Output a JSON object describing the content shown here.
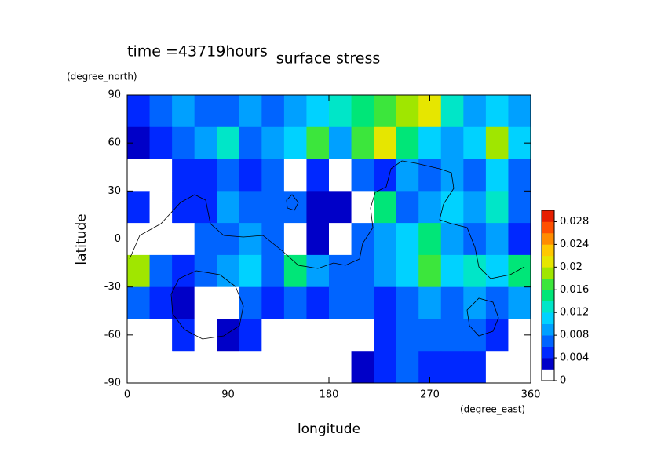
{
  "chart_data": {
    "type": "heatmap",
    "annotation": "time =43719hours",
    "title": "surface stress",
    "y_unit": "(degree_north)",
    "x_unit": "(degree_east)",
    "ylabel": "latitude",
    "xlabel": "longitude",
    "x": [
      10,
      30,
      50,
      70,
      90,
      110,
      130,
      150,
      170,
      190,
      210,
      230,
      250,
      270,
      290,
      310,
      330,
      350
    ],
    "y": [
      80,
      60,
      40,
      20,
      0,
      -20,
      -40,
      -60,
      -80
    ],
    "values": [
      [
        0.004,
        0.006,
        0.008,
        0.006,
        0.006,
        0.008,
        0.006,
        0.008,
        0.01,
        0.012,
        0.014,
        0.016,
        0.018,
        0.02,
        0.012,
        0.008,
        0.01,
        0.008
      ],
      [
        0.002,
        0.004,
        0.006,
        0.008,
        0.012,
        0.006,
        0.008,
        0.01,
        0.016,
        0.008,
        0.016,
        0.02,
        0.014,
        0.01,
        0.008,
        0.01,
        0.018,
        0.01
      ],
      [
        0,
        0,
        0.004,
        0.004,
        0.006,
        0.004,
        0.006,
        0,
        0.004,
        0,
        0.006,
        0.004,
        0.008,
        0.006,
        0.008,
        0.006,
        0.01,
        0.006
      ],
      [
        0.004,
        0,
        0.004,
        0.004,
        0.008,
        0.006,
        0.006,
        0.006,
        0.002,
        0.002,
        0,
        0.014,
        0.006,
        0.008,
        0.01,
        0.008,
        0.012,
        0.006
      ],
      [
        0,
        0,
        0,
        0.006,
        0.006,
        0.008,
        0.006,
        0,
        0.002,
        0,
        0.006,
        0.008,
        0.01,
        0.014,
        0.008,
        0.006,
        0.008,
        0.004
      ],
      [
        0.018,
        0.006,
        0.004,
        0.006,
        0.008,
        0.01,
        0.006,
        0.014,
        0.008,
        0.006,
        0.006,
        0.008,
        0.01,
        0.016,
        0.01,
        0.012,
        0.01,
        0.014
      ],
      [
        0.006,
        0.004,
        0.002,
        0,
        0,
        0.006,
        0.004,
        0.006,
        0.004,
        0.006,
        0.006,
        0.004,
        0.006,
        0.008,
        0.006,
        0.008,
        0.006,
        0.008
      ],
      [
        0,
        0,
        0.004,
        0,
        0.002,
        0.004,
        0,
        0,
        0,
        0,
        0,
        0.004,
        0.006,
        0.006,
        0.006,
        0.006,
        0.004,
        0
      ],
      [
        0,
        0,
        0,
        0,
        0,
        0,
        0,
        0,
        0,
        0,
        0.002,
        0.004,
        0.006,
        0.004,
        0.004,
        0.004,
        0,
        0
      ]
    ],
    "xlim": [
      0,
      360
    ],
    "xticks": [
      0,
      90,
      180,
      270,
      360
    ],
    "ylim": [
      -90,
      90
    ],
    "yticks": [
      90,
      60,
      30,
      0,
      -30,
      -60,
      -90
    ],
    "colorbar": {
      "lim": [
        0,
        0.03
      ],
      "ticks": [
        0,
        0.004,
        0.008,
        0.012,
        0.016,
        0.02,
        0.024,
        0.028
      ],
      "colors": [
        "#ffffff",
        "#0000c8",
        "#0028ff",
        "#0064ff",
        "#00a0ff",
        "#00d2ff",
        "#00e6c8",
        "#00e678",
        "#3ce63c",
        "#a0e600",
        "#e6e600",
        "#ffc800",
        "#ff8c00",
        "#ff5000",
        "#e61e00"
      ]
    }
  }
}
